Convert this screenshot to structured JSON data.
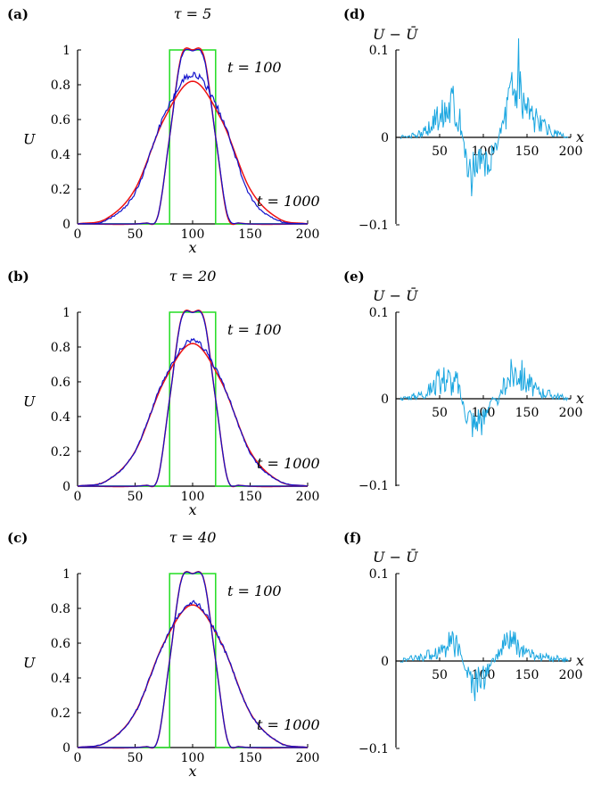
{
  "colors": {
    "initial": "#22dd22",
    "continuum": "#ee1111",
    "stochastic": "#1111cc",
    "difference": "#1aa6e0",
    "axis": "#000000"
  },
  "chart_data": [
    {
      "panel": "(a)",
      "type": "line",
      "title": "τ = 5",
      "tau": 5,
      "xlabel": "x",
      "ylabel": "U",
      "xlim": [
        0,
        200
      ],
      "ylim": [
        0,
        1
      ],
      "xticks": [
        "0",
        "50",
        "100",
        "150",
        "200"
      ],
      "yticks": [
        "0",
        "0.2",
        "0.4",
        "0.6",
        "0.8",
        "1"
      ],
      "annotations": [
        "t = 100",
        "t = 1000"
      ],
      "initial_condition": {
        "x": [
          0,
          80,
          80,
          120,
          120,
          200
        ],
        "y": [
          0,
          0,
          1,
          1,
          0,
          0
        ]
      },
      "series": [
        {
          "t": 100,
          "x": [
            0,
            60,
            70,
            80,
            90,
            100,
            110,
            120,
            130,
            140,
            200
          ],
          "continuum": [
            0,
            0.005,
            0.05,
            0.5,
            0.96,
            1.0,
            0.96,
            0.5,
            0.05,
            0.005,
            0
          ],
          "stochastic": [
            0,
            0.005,
            0.05,
            0.5,
            0.95,
            0.995,
            0.95,
            0.5,
            0.06,
            0.005,
            0
          ]
        },
        {
          "t": 1000,
          "x": [
            0,
            25,
            50,
            75,
            100,
            125,
            150,
            175,
            200
          ],
          "continuum": [
            0,
            0.03,
            0.2,
            0.6,
            0.82,
            0.6,
            0.2,
            0.03,
            0
          ],
          "stochastic": [
            0,
            0.02,
            0.18,
            0.62,
            0.86,
            0.62,
            0.16,
            0.02,
            0
          ]
        }
      ]
    },
    {
      "panel": "(d)",
      "type": "line",
      "ylabel": "U − Ū",
      "xlabel": "x",
      "xlim": [
        0,
        200
      ],
      "ylim": [
        -0.1,
        0.1
      ],
      "xticks": [
        "50",
        "100",
        "150",
        "200"
      ],
      "yticks": [
        "0.1",
        "0",
        "−0.1"
      ],
      "series": [
        {
          "x": [
            5,
            20,
            35,
            50,
            60,
            65,
            70,
            75,
            80,
            85,
            90,
            95,
            100,
            105,
            110,
            115,
            120,
            125,
            130,
            135,
            140,
            145,
            150,
            155,
            160,
            170,
            180,
            190,
            197
          ],
          "values": [
            0,
            0.002,
            0.008,
            0.025,
            0.04,
            0.045,
            0.03,
            0.01,
            -0.02,
            -0.04,
            -0.035,
            -0.02,
            -0.03,
            -0.04,
            -0.03,
            -0.01,
            0.01,
            0.03,
            0.05,
            0.06,
            0.07,
            0.05,
            0.04,
            0.03,
            0.02,
            0.012,
            0.006,
            0.002,
            0
          ]
        }
      ]
    },
    {
      "panel": "(b)",
      "type": "line",
      "title": "τ = 20",
      "tau": 20,
      "xlabel": "x",
      "ylabel": "U",
      "xlim": [
        0,
        200
      ],
      "ylim": [
        0,
        1
      ],
      "xticks": [
        "0",
        "50",
        "100",
        "150",
        "200"
      ],
      "yticks": [
        "0",
        "0.2",
        "0.4",
        "0.6",
        "0.8",
        "1"
      ],
      "annotations": [
        "t = 100",
        "t = 1000"
      ],
      "initial_condition": {
        "x": [
          0,
          80,
          80,
          120,
          120,
          200
        ],
        "y": [
          0,
          0,
          1,
          1,
          0,
          0
        ]
      },
      "series": [
        {
          "t": 100,
          "x": [
            0,
            60,
            70,
            80,
            90,
            100,
            110,
            120,
            130,
            140,
            200
          ],
          "continuum": [
            0,
            0.005,
            0.05,
            0.5,
            0.96,
            1.0,
            0.96,
            0.5,
            0.05,
            0.005,
            0
          ],
          "stochastic": [
            0,
            0.005,
            0.05,
            0.5,
            0.955,
            0.998,
            0.955,
            0.5,
            0.05,
            0.005,
            0
          ]
        },
        {
          "t": 1000,
          "x": [
            0,
            25,
            50,
            75,
            100,
            125,
            150,
            175,
            200
          ],
          "continuum": [
            0,
            0.03,
            0.2,
            0.6,
            0.82,
            0.6,
            0.2,
            0.03,
            0
          ],
          "stochastic": [
            0,
            0.03,
            0.2,
            0.61,
            0.84,
            0.61,
            0.19,
            0.03,
            0
          ]
        }
      ]
    },
    {
      "panel": "(e)",
      "type": "line",
      "ylabel": "U − Ū",
      "xlabel": "x",
      "xlim": [
        0,
        200
      ],
      "ylim": [
        -0.1,
        0.1
      ],
      "xticks": [
        "50",
        "100",
        "150",
        "200"
      ],
      "yticks": [
        "0.1",
        "0",
        "−0.1"
      ],
      "series": [
        {
          "x": [
            5,
            20,
            35,
            50,
            60,
            65,
            70,
            75,
            80,
            85,
            90,
            95,
            100,
            105,
            110,
            115,
            120,
            125,
            130,
            135,
            140,
            145,
            150,
            155,
            160,
            170,
            180,
            190,
            197
          ],
          "values": [
            0,
            0.003,
            0.008,
            0.02,
            0.025,
            0.015,
            0.02,
            0.0,
            -0.015,
            -0.02,
            -0.03,
            -0.02,
            -0.025,
            -0.01,
            0.0,
            -0.005,
            0.005,
            0.02,
            0.025,
            0.03,
            0.035,
            0.025,
            0.02,
            0.015,
            0.01,
            0.007,
            0.004,
            0.002,
            0
          ]
        }
      ]
    },
    {
      "panel": "(c)",
      "type": "line",
      "title": "τ = 40",
      "tau": 40,
      "xlabel": "x",
      "ylabel": "U",
      "xlim": [
        0,
        200
      ],
      "ylim": [
        0,
        1
      ],
      "xticks": [
        "0",
        "50",
        "100",
        "150",
        "200"
      ],
      "yticks": [
        "0",
        "0.2",
        "0.4",
        "0.6",
        "0.8",
        "1"
      ],
      "annotations": [
        "t = 100",
        "t = 1000"
      ],
      "initial_condition": {
        "x": [
          0,
          80,
          80,
          120,
          120,
          200
        ],
        "y": [
          0,
          0,
          1,
          1,
          0,
          0
        ]
      },
      "series": [
        {
          "t": 100,
          "x": [
            0,
            60,
            70,
            80,
            90,
            100,
            110,
            120,
            130,
            140,
            200
          ],
          "continuum": [
            0,
            0.005,
            0.05,
            0.5,
            0.96,
            1.0,
            0.96,
            0.5,
            0.05,
            0.005,
            0
          ],
          "stochastic": [
            0,
            0.005,
            0.05,
            0.5,
            0.958,
            0.999,
            0.958,
            0.5,
            0.05,
            0.005,
            0
          ]
        },
        {
          "t": 1000,
          "x": [
            0,
            25,
            50,
            75,
            100,
            125,
            150,
            175,
            200
          ],
          "continuum": [
            0,
            0.03,
            0.2,
            0.6,
            0.82,
            0.6,
            0.2,
            0.03,
            0
          ],
          "stochastic": [
            0,
            0.03,
            0.2,
            0.6,
            0.835,
            0.6,
            0.2,
            0.03,
            0
          ]
        }
      ]
    },
    {
      "panel": "(f)",
      "type": "line",
      "ylabel": "U − Ū",
      "xlabel": "x",
      "xlim": [
        0,
        200
      ],
      "ylim": [
        -0.1,
        0.1
      ],
      "xticks": [
        "50",
        "100",
        "150",
        "200"
      ],
      "yticks": [
        "0.1",
        "0",
        "−0.1"
      ],
      "series": [
        {
          "x": [
            5,
            20,
            35,
            50,
            60,
            65,
            70,
            75,
            80,
            85,
            90,
            95,
            100,
            105,
            110,
            115,
            120,
            125,
            130,
            135,
            140,
            145,
            150,
            155,
            160,
            170,
            180,
            190,
            197
          ],
          "values": [
            0,
            0.003,
            0.006,
            0.012,
            0.02,
            0.025,
            0.015,
            0.005,
            -0.01,
            -0.02,
            -0.03,
            -0.02,
            -0.02,
            -0.01,
            0.0,
            0.005,
            0.01,
            0.02,
            0.025,
            0.02,
            0.015,
            0.012,
            0.01,
            0.007,
            0.005,
            0.004,
            0.003,
            0.002,
            0
          ]
        }
      ]
    }
  ]
}
